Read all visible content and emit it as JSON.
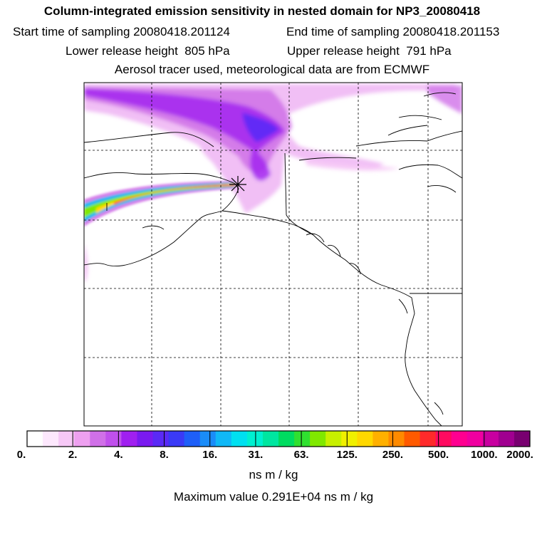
{
  "title": "Column-integrated emission sensitivity in nested domain for NP3_20080418",
  "start_label": "Start time of sampling",
  "start_value": "20080418.201124",
  "end_label": "End time of sampling",
  "end_value": "20080418.201153",
  "lower_label": "Lower release height",
  "lower_value": "805 hPa",
  "upper_label": "Upper release height",
  "upper_value": "791 hPa",
  "info": "Aerosol tracer used, meteorological data are from ECMWF",
  "colorbar": {
    "ticks": [
      "0.",
      "2.",
      "4.",
      "8.",
      "16.",
      "31.",
      "63.",
      "125.",
      "250.",
      "500.",
      "1000.",
      "2000."
    ],
    "colors": [
      "#ffffff",
      "#fde8fd",
      "#f6c8f6",
      "#eea0f0",
      "#d070e8",
      "#c050ec",
      "#a020f0",
      "#7a1af0",
      "#5a2af6",
      "#3a3af6",
      "#1e5ff8",
      "#1a8cf8",
      "#10b8f6",
      "#00e0f0",
      "#00f0d0",
      "#00e6a0",
      "#00dc60",
      "#30e030",
      "#80e800",
      "#c8f000",
      "#f0f000",
      "#ffd800",
      "#ffb000",
      "#ff8a00",
      "#ff5a00",
      "#ff2a2a",
      "#ff0a60",
      "#ff0090",
      "#f000a0",
      "#c800a0",
      "#a00090",
      "#780070"
    ],
    "units": "ns m / kg"
  },
  "max_value_text": "Maximum value  0.291E+04 ns m / kg"
}
